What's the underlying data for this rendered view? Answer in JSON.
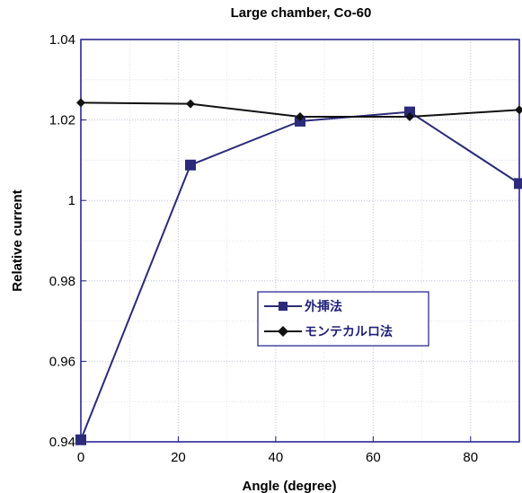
{
  "chart_data": {
    "type": "line",
    "title": "Large chamber, Co-60",
    "xlabel": "Angle (degree)",
    "ylabel": "Relative current",
    "xlim": [
      0,
      90
    ],
    "ylim": [
      0.94,
      1.04
    ],
    "xticks": [
      0,
      20,
      40,
      60,
      80
    ],
    "yticks": [
      0.94,
      0.96,
      0.98,
      1,
      1.02,
      1.04
    ],
    "ytick_labels": [
      "0.94",
      "0.96",
      "0.98",
      "1",
      "1.02",
      "1.04"
    ],
    "grid": true,
    "legend_position": "center-right",
    "series": [
      {
        "name": "外挿法",
        "color": "#2b2b7a",
        "marker": "square",
        "x": [
          0,
          22.5,
          45,
          67.5,
          90
        ],
        "y": [
          0.9405,
          1.0088,
          1.0197,
          1.022,
          1.0042
        ]
      },
      {
        "name": "モンテカルロ法",
        "color": "#111111",
        "marker": "diamond",
        "x": [
          0,
          22.5,
          45,
          67.5,
          90
        ],
        "y": [
          1.0243,
          1.024,
          1.0208,
          1.0208,
          1.0225
        ]
      }
    ]
  }
}
